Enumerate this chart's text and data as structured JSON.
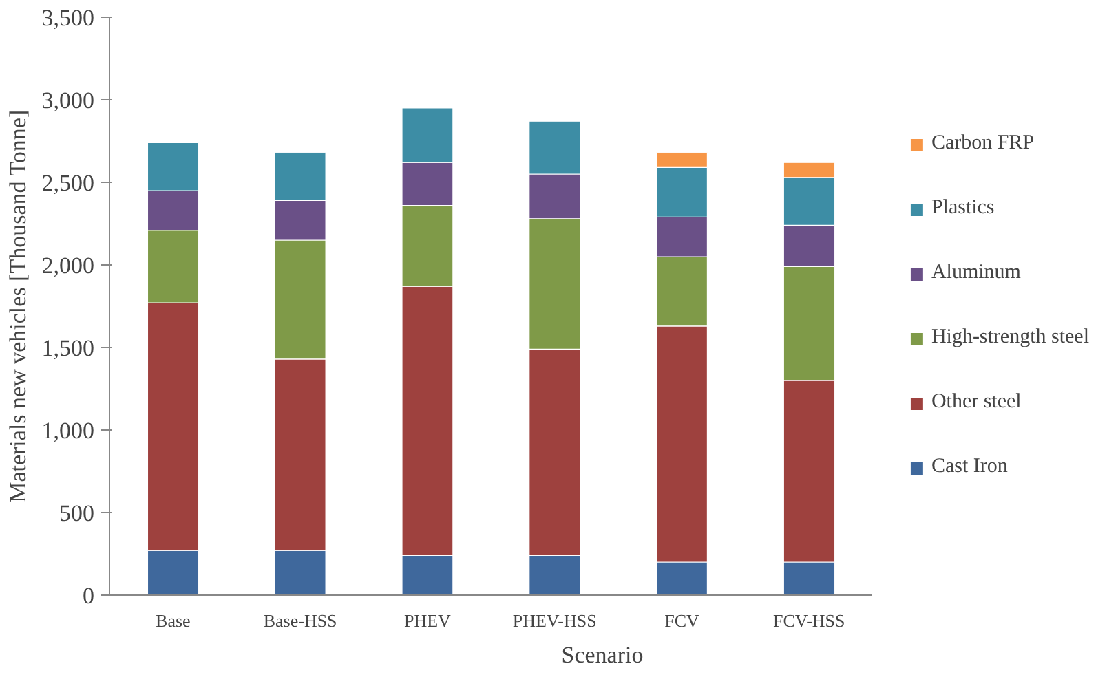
{
  "chart_data": {
    "type": "bar",
    "stacked": true,
    "xlabel": "Scenario",
    "ylabel": "Materials new vehicles [Thousand Tonne]",
    "categories": [
      "Base",
      "Base-HSS",
      "PHEV",
      "PHEV-HSS",
      "FCV",
      "FCV-HSS"
    ],
    "series": [
      {
        "name": "Cast Iron",
        "color": "#3f689c",
        "values": [
          270,
          270,
          240,
          240,
          200,
          200
        ]
      },
      {
        "name": "Other steel",
        "color": "#9e413e",
        "values": [
          1500,
          1160,
          1630,
          1250,
          1430,
          1100
        ]
      },
      {
        "name": "High-strength steel",
        "color": "#7f9a48",
        "values": [
          440,
          720,
          490,
          790,
          420,
          690
        ]
      },
      {
        "name": "Aluminum",
        "color": "#6a5087",
        "values": [
          240,
          240,
          260,
          270,
          240,
          250
        ]
      },
      {
        "name": "Plastics",
        "color": "#3d8da5",
        "values": [
          290,
          290,
          330,
          320,
          300,
          290
        ]
      },
      {
        "name": "Carbon FRP",
        "color": "#f79646",
        "values": [
          null,
          null,
          null,
          null,
          90,
          90
        ]
      }
    ],
    "ylim": [
      0,
      3500
    ],
    "yticks": [
      0,
      500,
      {
        "value": 1000,
        "label": "1,000"
      },
      {
        "value": 1500,
        "label": "1,500"
      },
      {
        "value": 2000,
        "label": "2,000"
      },
      {
        "value": 2500,
        "label": "2,500"
      },
      {
        "value": 3000,
        "label": "3,000"
      },
      {
        "value": 3500,
        "label": "3,500"
      }
    ],
    "grid": false,
    "legend": "right"
  }
}
